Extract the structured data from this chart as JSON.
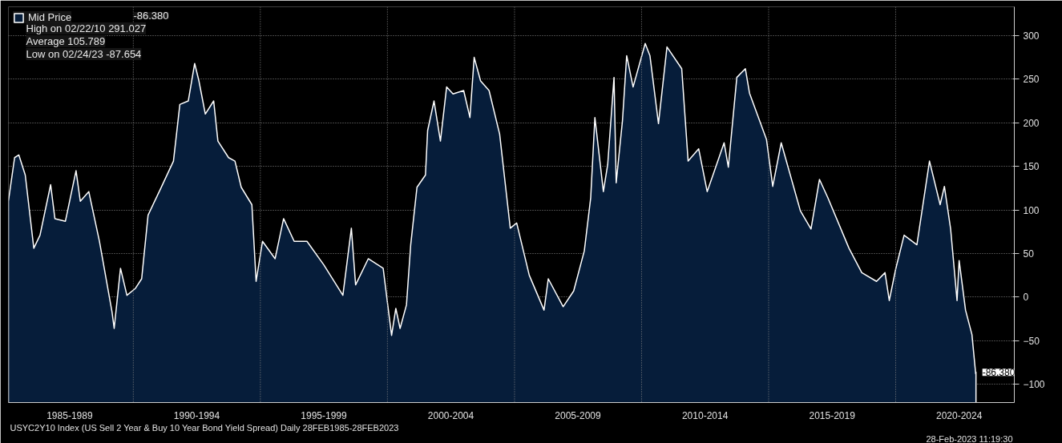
{
  "chart_data": {
    "type": "area",
    "title": null,
    "x": [
      "1985-02",
      "1985-05",
      "1985-07",
      "1985-10",
      "1986-02",
      "1986-05",
      "1986-10",
      "1986-12",
      "1987-05",
      "1987-10",
      "1987-12",
      "1988-04",
      "1988-09",
      "1989-03",
      "1989-04",
      "1989-07",
      "1989-10",
      "1990-02",
      "1990-05",
      "1990-08",
      "1991-02",
      "1991-08",
      "1991-11",
      "1992-03",
      "1992-06",
      "1992-08",
      "1992-11",
      "1993-03",
      "1993-05",
      "1993-10",
      "1994-01",
      "1994-04",
      "1994-09",
      "1994-11",
      "1995-02",
      "1995-08",
      "1995-12",
      "1996-05",
      "1996-11",
      "1997-07",
      "1998-04",
      "1998-08",
      "1998-10",
      "1999-04",
      "1999-11",
      "2000-01",
      "2000-03",
      "2000-05",
      "2000-07",
      "2000-10",
      "2000-12",
      "2001-03",
      "2001-07",
      "2001-08",
      "2001-11",
      "2002-02",
      "2002-05",
      "2002-08",
      "2003-01",
      "2003-04",
      "2003-06",
      "2003-09",
      "2004-01",
      "2004-06",
      "2004-11",
      "2005-02",
      "2005-08",
      "2006-03",
      "2006-05",
      "2006-12",
      "2007-05",
      "2007-10",
      "2008-01",
      "2008-03",
      "2008-07",
      "2008-09",
      "2008-12",
      "2009-01",
      "2009-04",
      "2009-06",
      "2009-09",
      "2010-02-22",
      "2010-05",
      "2010-09",
      "2011-01",
      "2011-08",
      "2011-11",
      "2012-04",
      "2012-08",
      "2012-12",
      "2013-04",
      "2013-06",
      "2013-10",
      "2014-02",
      "2014-04",
      "2014-12",
      "2015-03",
      "2015-07",
      "2016-04",
      "2016-09",
      "2017-01",
      "2017-05",
      "2018-03",
      "2018-09",
      "2019-04",
      "2019-08",
      "2019-10",
      "2020-01",
      "2020-05",
      "2020-11",
      "2021-05",
      "2021-10",
      "2021-12",
      "2022-03",
      "2022-06",
      "2022-07",
      "2022-10",
      "2023-01",
      "2023-02-24",
      "2023-02-28"
    ],
    "series": [
      {
        "name": "Mid Price",
        "color": "#061d3a",
        "values": [
          110,
          160,
          163,
          140,
          56,
          71,
          129,
          90,
          87,
          145,
          110,
          121,
          64,
          -17,
          -36,
          33,
          2,
          10,
          21,
          94,
          125,
          156,
          221,
          225,
          268,
          248,
          210,
          225,
          179,
          160,
          156,
          126,
          106,
          18,
          64,
          44,
          90,
          64,
          64,
          37,
          2,
          79,
          14,
          44,
          33,
          -6,
          -44,
          -13,
          -36,
          -9,
          60,
          126,
          140,
          191,
          225,
          179,
          241,
          233,
          237,
          206,
          275,
          248,
          237,
          187,
          79,
          85,
          25,
          -15,
          21,
          -11,
          7,
          53,
          114,
          206,
          121,
          152,
          252,
          131,
          202,
          277,
          241,
          291,
          277,
          199,
          287,
          262,
          156,
          170,
          121,
          149,
          177,
          149,
          252,
          262,
          234,
          181,
          127,
          177,
          99,
          78,
          135,
          114,
          56,
          28,
          18,
          28,
          -4,
          32,
          71,
          60,
          156,
          106,
          127,
          78,
          -4,
          42,
          -15,
          -43,
          -88,
          -86
        ]
      }
    ],
    "xlim": [
      "1985-02-01",
      "2024-09-01"
    ],
    "xticks": [
      {
        "value": "1990-01-01",
        "label": null
      },
      {
        "value": "1995-01-01",
        "label": null
      },
      {
        "value": "2000-01-01",
        "label": null
      },
      {
        "value": "2005-01-01",
        "label": null
      },
      {
        "value": "2010-01-01",
        "label": null
      },
      {
        "value": "2015-01-01",
        "label": null
      },
      {
        "value": "2020-01-01",
        "label": null
      },
      {
        "value": "1987-07-01",
        "label": "1985-1989"
      },
      {
        "value": "1992-07-01",
        "label": "1990-1994"
      },
      {
        "value": "1997-07-01",
        "label": "1995-1999"
      },
      {
        "value": "2002-07-01",
        "label": "2000-2004"
      },
      {
        "value": "2007-07-01",
        "label": "2005-2009"
      },
      {
        "value": "2012-07-01",
        "label": "2010-2014"
      },
      {
        "value": "2017-07-01",
        "label": "2015-2019"
      },
      {
        "value": "2022-07-01",
        "label": "2020-2024"
      }
    ],
    "ylim": [
      -121,
      333
    ],
    "yticks": [
      -100,
      -50,
      0,
      50,
      100,
      150,
      200,
      250,
      300
    ],
    "grid": true,
    "legend": "top left",
    "annotations": [
      "-86.380",
      "High on 02/22/10 291.027",
      "Average 105.789",
      "Low on 02/24/23 -87.654",
      {
        "text": "-86.380",
        "x": "2023-02-28",
        "y": -86.38
      },
      "USYC2Y10 Index (US Sell 2 Year & Buy 10 Year Bond Yield Spread)  Daily 28FEB1985-28FEB2023",
      "28-Feb-2023 11:19:30"
    ]
  }
}
